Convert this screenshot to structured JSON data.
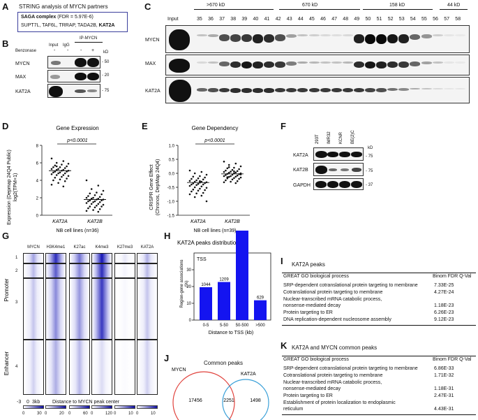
{
  "panelA": {
    "label": "A",
    "title": "STRING analysis of MYCN partners",
    "line1_bold": "SAGA complex",
    "line1_rest": "(FDR = 5.97E-6)",
    "line2_plain": "SUPT7L, TAF6L, TRRAP, TADA2B,",
    "line2_bold": "KAT2A"
  },
  "panelB": {
    "label": "B",
    "ip_header": "IP-MYCN",
    "input": "Input",
    "igg": "IgG",
    "benzonase": "Benzonase",
    "signs": [
      "-",
      "-",
      "-",
      "+"
    ],
    "kd": "kD",
    "rows": [
      {
        "name": "MYCN",
        "marker": "- 50"
      },
      {
        "name": "MAX",
        "marker": "- 20"
      },
      {
        "name": "KAT2A",
        "marker": "- 75"
      }
    ]
  },
  "panelC": {
    "label": "C",
    "size_labels": [
      ">670 kD",
      "670 kD",
      "158 kD",
      "44 kD"
    ],
    "input": "Input",
    "fractions": [
      "35",
      "36",
      "37",
      "38",
      "39",
      "40",
      "41",
      "42",
      "43",
      "44",
      "45",
      "46",
      "47",
      "48",
      "49",
      "50",
      "51",
      "52",
      "53",
      "54",
      "55",
      "56",
      "57",
      "58"
    ],
    "rows": [
      "MYCN",
      "MAX",
      "KAT2A"
    ]
  },
  "panelD": {
    "label": "D",
    "title": "Gene Expression",
    "pval": "p<0.0001",
    "ylabel": "Expression (Depmap 24Q4 Public)\nlog2(TPM+1)",
    "yticks": [
      "0",
      "2",
      "4",
      "6",
      "8"
    ],
    "groups": [
      "KAT2A",
      "KAT2B"
    ],
    "xlabel": "NB cell lines (n=36)"
  },
  "panelE": {
    "label": "E",
    "title": "Gene Dependency",
    "pval": "p<0.0001",
    "ylabel": "CRISPR Gene Effect\n(Chronos, DepMap 24Q4)",
    "yticks": [
      "-1.5",
      "-1.0",
      "-0.5",
      "0.0",
      "0.5",
      "1.0"
    ],
    "groups": [
      "KAT2A",
      "KAT2B"
    ],
    "xlabel": "NB cell lines (n=39)"
  },
  "panelF": {
    "label": "F",
    "lanes": [
      "293T",
      "IMR32",
      "KCNR",
      "BE(2)C"
    ],
    "kd": "kD",
    "rows": [
      {
        "name": "KAT2A",
        "marker": "- 75"
      },
      {
        "name": "KAT2B",
        "marker": "- 75"
      },
      {
        "name": "GAPDH",
        "marker": "- 37"
      }
    ]
  },
  "panelG": {
    "label": "G",
    "tracks": [
      "MYCN",
      "H3K4me1",
      "K27ac",
      "K4me3",
      "K27me3",
      "KAT2A"
    ],
    "clusters": [
      "1",
      "2",
      "3",
      "4"
    ],
    "groups": [
      "Promoter",
      "Enhancer"
    ],
    "axis_left": "-3",
    "axis_mid": "0",
    "axis_right": "3kb",
    "axis_title": "Distance to MYCN peak center",
    "scales": [
      {
        "min": "0",
        "max": "30"
      },
      {
        "min": "0",
        "max": "20"
      },
      {
        "min": "0",
        "max": "60"
      },
      {
        "min": "0",
        "max": "120"
      },
      {
        "min": "0",
        "max": "10"
      },
      {
        "min": "0",
        "max": "10"
      }
    ]
  },
  "panelH": {
    "label": "H",
    "tss": "TSS"
  },
  "panelJ": {
    "label": "J",
    "title": "Common peaks",
    "left_name": "MYCN",
    "right_name": "KAT2A",
    "left_only": "17456",
    "overlap": "2251",
    "right_only": "1498",
    "left_color": "#e0413b",
    "right_color": "#3aa0d8"
  },
  "panelI": {
    "label": "I",
    "title": "KAT2A peaks",
    "col1": "GREAT GO biological process",
    "col2": "Binom FDR Q-Val",
    "rows": [
      {
        "term": "SRP-dependent cotranslational protein targeting to membrane",
        "val": "7.33E-25"
      },
      {
        "term": "Cotranslational protein targeting to membrane",
        "val": "4.27E-24"
      },
      {
        "term": "Nuclear-transcribed mRNA catabolic process,\nnonsense-mediated decay",
        "val": "1.18E-23"
      },
      {
        "term": "Protein targeting to ER",
        "val": "6.26E-23"
      },
      {
        "term": "DNA replication-dependent nucleosome assembly",
        "val": "9.12E-23"
      }
    ]
  },
  "panelK": {
    "label": "K",
    "title": "KAT2A and MYCN common peaks",
    "col1": "GREAT GO biological process",
    "col2": "Binom FDR Q-Val",
    "rows": [
      {
        "term": "SRP-dependent cotranslational protein targeting to membrane",
        "val": "6.86E-33"
      },
      {
        "term": "Cotranslational protein targeting to membrane",
        "val": "1.71E-32"
      },
      {
        "term": "Nuclear-transcribed mRNA catabolic process,\nnonsense-mediated decay",
        "val": "1.18E-31"
      },
      {
        "term": "Protein targeting to ER",
        "val": "2.47E-31"
      },
      {
        "term": "Establishment of protein localization to endoplasmic\nreticulum",
        "val": "4.43E-31"
      }
    ]
  },
  "chart_data": [
    {
      "id": "panelD",
      "type": "scatter",
      "title": "Gene Expression",
      "categories": [
        "KAT2A",
        "KAT2B"
      ],
      "ylim": [
        0,
        8
      ],
      "median": [
        5.1,
        1.8
      ],
      "series": [
        {
          "name": "KAT2A",
          "values": [
            6.5,
            6.2,
            6.0,
            5.9,
            5.8,
            5.7,
            5.6,
            5.5,
            5.5,
            5.4,
            5.3,
            5.3,
            5.2,
            5.2,
            5.1,
            5.1,
            5.0,
            5.0,
            4.9,
            4.9,
            4.8,
            4.8,
            4.7,
            4.6,
            4.6,
            4.5,
            4.4,
            4.3,
            4.2,
            4.1,
            4.0,
            3.9,
            3.7,
            3.5,
            3.3,
            5.6
          ]
        },
        {
          "name": "KAT2B",
          "values": [
            4.0,
            3.4,
            3.0,
            2.8,
            2.6,
            2.5,
            2.4,
            2.3,
            2.2,
            2.1,
            2.0,
            2.0,
            1.9,
            1.9,
            1.8,
            1.8,
            1.7,
            1.7,
            1.6,
            1.6,
            1.5,
            1.5,
            1.4,
            1.3,
            1.3,
            1.2,
            1.1,
            1.0,
            1.0,
            0.9,
            0.8,
            0.7,
            0.6,
            0.5,
            0.4,
            1.9
          ]
        }
      ]
    },
    {
      "id": "panelE",
      "type": "scatter",
      "title": "Gene Dependency",
      "categories": [
        "KAT2A",
        "KAT2B"
      ],
      "ylim": [
        -1.5,
        1.0
      ],
      "median": [
        -0.33,
        -0.02
      ],
      "series": [
        {
          "name": "KAT2A",
          "values": [
            0.1,
            0.05,
            0.0,
            -0.05,
            -0.1,
            -0.12,
            -0.15,
            -0.18,
            -0.2,
            -0.22,
            -0.25,
            -0.27,
            -0.3,
            -0.3,
            -0.32,
            -0.33,
            -0.35,
            -0.35,
            -0.38,
            -0.4,
            -0.4,
            -0.42,
            -0.45,
            -0.47,
            -0.5,
            -0.52,
            -0.55,
            -0.58,
            -0.6,
            -0.62,
            -0.65,
            -0.7,
            -0.72,
            -0.75,
            -0.8,
            -0.85,
            -1.0,
            -0.28,
            -0.36
          ]
        },
        {
          "name": "KAT2B",
          "values": [
            0.42,
            0.35,
            0.3,
            0.25,
            0.2,
            0.18,
            0.15,
            0.12,
            0.1,
            0.08,
            0.06,
            0.05,
            0.03,
            0.02,
            0.0,
            0.0,
            -0.02,
            -0.03,
            -0.05,
            -0.06,
            -0.08,
            -0.1,
            -0.1,
            -0.12,
            -0.13,
            -0.15,
            -0.17,
            -0.18,
            -0.2,
            -0.22,
            -0.25,
            -0.28,
            -0.3,
            -0.32,
            -0.35,
            0.22,
            -0.04,
            0.07,
            -0.14
          ]
        }
      ]
    },
    {
      "id": "panelH",
      "type": "bar",
      "title": "KAT2A peaks distribution",
      "categories": [
        "0-5",
        "5-50",
        "50-500",
        ">500"
      ],
      "values": [
        1044,
        1209,
        3496,
        629
      ],
      "ylabel": "Region-gene associations",
      "ylabel_display": "Region-gene associations\n(%)",
      "xlabel": "Distance to TSS (kb)",
      "ylim": [
        0,
        40
      ],
      "percent": [
        19.6,
        22.7,
        65.6,
        11.8
      ],
      "yticks": [
        "0",
        "10",
        "20",
        "30"
      ],
      "color": "#1414f0"
    }
  ]
}
